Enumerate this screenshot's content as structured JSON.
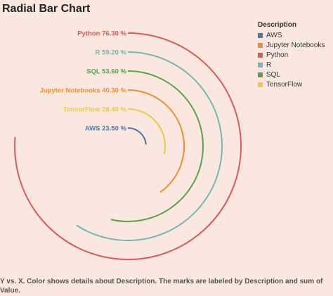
{
  "title": "Radial Bar Chart",
  "caption": "Y vs. X.  Color shows details about Description.  The marks are labeled by Description and sum of Value.",
  "legend": {
    "title": "Description",
    "items": [
      {
        "label": "AWS",
        "color": "#4e79a7"
      },
      {
        "label": "Jupyter Notebooks",
        "color": "#f28e2b"
      },
      {
        "label": "Python",
        "color": "#e15759"
      },
      {
        "label": "R",
        "color": "#76b7b2"
      },
      {
        "label": "SQL",
        "color": "#59a14f"
      },
      {
        "label": "TensorFlow",
        "color": "#edc948"
      }
    ]
  },
  "chart_data": {
    "type": "radial-bar",
    "title": "Radial Bar Chart",
    "value_unit": "%",
    "series": [
      {
        "name": "Python",
        "value": 76.3,
        "label": "Python 76.30 %",
        "color": "#e15759"
      },
      {
        "name": "R",
        "value": 59.2,
        "label": "R 59.20 %",
        "color": "#76b7b2"
      },
      {
        "name": "SQL",
        "value": 53.6,
        "label": "SQL 53.60 %",
        "color": "#59a14f"
      },
      {
        "name": "Jupyter Notebooks",
        "value": 40.3,
        "label": "Jupyter Notebooks 40.30 %",
        "color": "#f28e2b"
      },
      {
        "name": "TensorFlow",
        "value": 28.4,
        "label": "TensorFlow 28.40 %",
        "color": "#edc948"
      },
      {
        "name": "AWS",
        "value": 23.5,
        "label": "AWS 23.50 %",
        "color": "#4e79a7"
      }
    ],
    "legend_position": "right",
    "grid": false
  }
}
